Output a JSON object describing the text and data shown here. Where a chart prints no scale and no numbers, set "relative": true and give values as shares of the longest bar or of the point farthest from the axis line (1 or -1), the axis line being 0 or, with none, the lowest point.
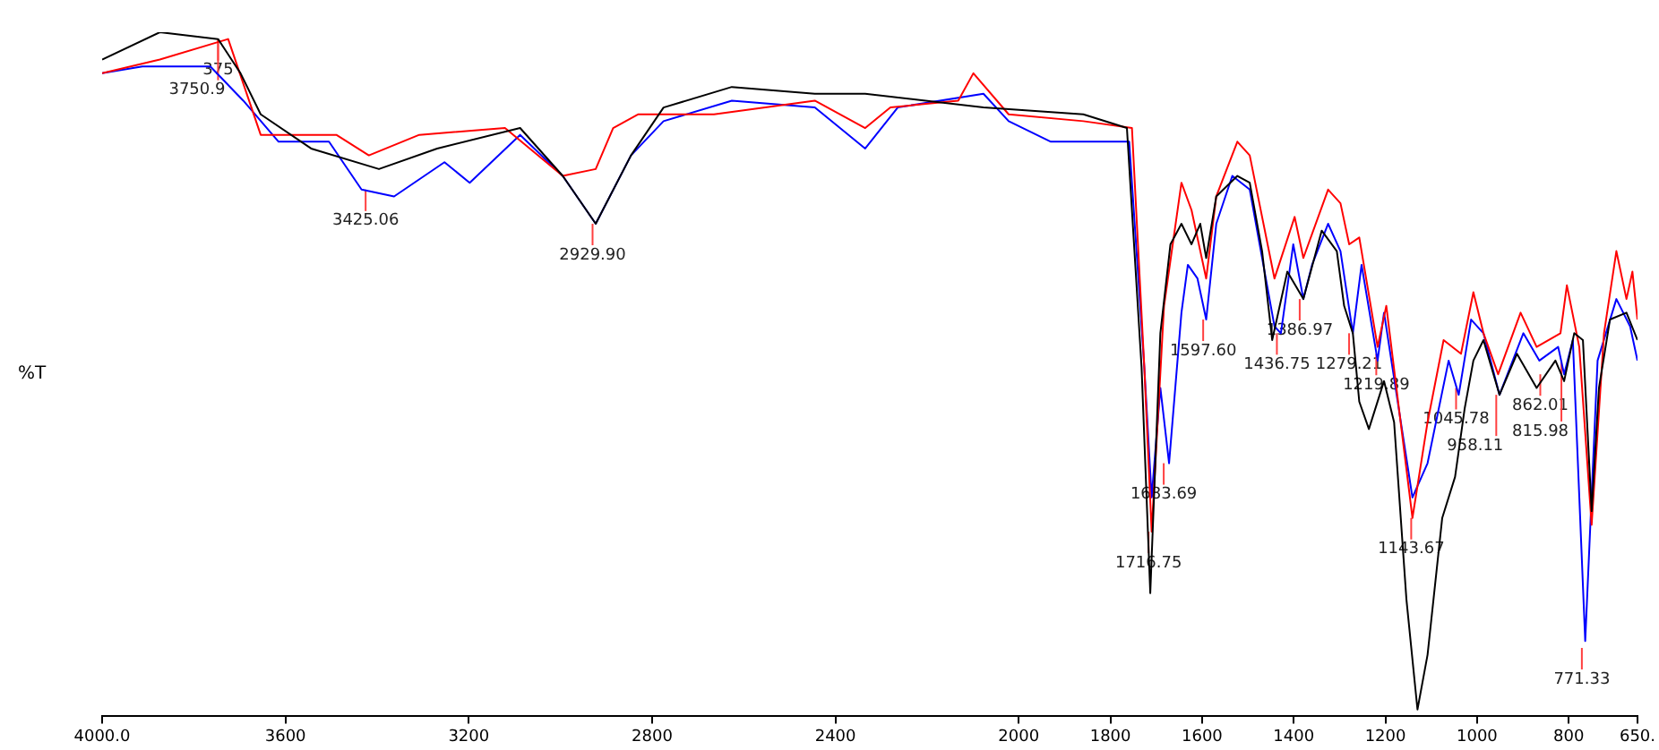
{
  "chart_data": {
    "type": "line",
    "ylabel": "%T",
    "relative": true,
    "legend": false,
    "marker": "none",
    "line_style": "solid",
    "xlim": [
      4000,
      650
    ],
    "xticks": [
      {
        "value": 4000,
        "label": "4000.0"
      },
      3600,
      3200,
      2800,
      2400,
      2000,
      1800,
      1600,
      1400,
      1200,
      1000,
      800,
      {
        "value": 650,
        "label": "650."
      }
    ],
    "series": [
      {
        "color": "#000000",
        "x": [
          4000,
          3874,
          3747,
          3698,
          3654,
          3544,
          3396,
          3269,
          3088,
          2995,
          2923,
          2846,
          2775,
          2626,
          2445,
          2335,
          2077,
          1859,
          1764,
          1732,
          1713,
          1691,
          1669,
          1645,
          1623,
          1604,
          1591,
          1569,
          1523,
          1496,
          1469,
          1447,
          1414,
          1379,
          1339,
          1306,
          1290,
          1271,
          1257,
          1236,
          1203,
          1181,
          1154,
          1130,
          1108,
          1076,
          1048,
          1027,
          1008,
          986,
          951,
          913,
          870,
          829,
          810,
          788,
          769,
          750,
          734,
          710,
          674,
          650
        ],
        "values": [
          0.96,
          1.0,
          0.99,
          0.94,
          0.88,
          0.83,
          0.8,
          0.83,
          0.86,
          0.79,
          0.72,
          0.82,
          0.89,
          0.92,
          0.91,
          0.91,
          0.89,
          0.88,
          0.86,
          0.51,
          0.18,
          0.56,
          0.69,
          0.72,
          0.69,
          0.72,
          0.67,
          0.76,
          0.79,
          0.78,
          0.68,
          0.55,
          0.65,
          0.61,
          0.71,
          0.68,
          0.6,
          0.56,
          0.46,
          0.42,
          0.49,
          0.43,
          0.17,
          0.01,
          0.09,
          0.29,
          0.35,
          0.45,
          0.52,
          0.55,
          0.47,
          0.53,
          0.48,
          0.52,
          0.49,
          0.56,
          0.55,
          0.3,
          0.48,
          0.58,
          0.59,
          0.55
        ]
      },
      {
        "color": "#ff0000",
        "x": [
          4000,
          3874,
          3725,
          3654,
          3489,
          3418,
          3308,
          3121,
          2995,
          2923,
          2885,
          2830,
          2775,
          2665,
          2445,
          2335,
          2280,
          2132,
          2099,
          2022,
          1859,
          1753,
          1726,
          1710,
          1683,
          1645,
          1623,
          1591,
          1569,
          1523,
          1496,
          1442,
          1398,
          1379,
          1325,
          1298,
          1279,
          1257,
          1217,
          1198,
          1141,
          1108,
          1073,
          1035,
          1008,
          986,
          954,
          905,
          870,
          818,
          804,
          777,
          750,
          723,
          696,
          674,
          661,
          650
        ],
        "values": [
          0.94,
          0.96,
          0.99,
          0.85,
          0.85,
          0.82,
          0.85,
          0.86,
          0.79,
          0.8,
          0.86,
          0.88,
          0.88,
          0.88,
          0.9,
          0.86,
          0.89,
          0.9,
          0.94,
          0.88,
          0.87,
          0.86,
          0.51,
          0.27,
          0.6,
          0.78,
          0.74,
          0.64,
          0.76,
          0.84,
          0.82,
          0.64,
          0.73,
          0.67,
          0.77,
          0.75,
          0.69,
          0.7,
          0.54,
          0.6,
          0.29,
          0.43,
          0.55,
          0.53,
          0.62,
          0.56,
          0.5,
          0.59,
          0.54,
          0.56,
          0.63,
          0.54,
          0.28,
          0.56,
          0.68,
          0.61,
          0.65,
          0.58
        ]
      },
      {
        "color": "#0000ff",
        "x": [
          4000,
          3912,
          3764,
          3692,
          3615,
          3505,
          3434,
          3363,
          3253,
          3198,
          3088,
          2995,
          2923,
          2846,
          2775,
          2626,
          2445,
          2335,
          2264,
          2077,
          2022,
          1930,
          1840,
          1759,
          1726,
          1710,
          1691,
          1672,
          1645,
          1631,
          1610,
          1591,
          1569,
          1534,
          1496,
          1442,
          1428,
          1401,
          1379,
          1360,
          1325,
          1298,
          1271,
          1252,
          1217,
          1203,
          1141,
          1108,
          1062,
          1040,
          1013,
          986,
          951,
          899,
          864,
          823,
          810,
          791,
          764,
          737,
          696,
          666,
          650
        ],
        "values": [
          0.94,
          0.95,
          0.95,
          0.9,
          0.84,
          0.84,
          0.77,
          0.76,
          0.81,
          0.78,
          0.85,
          0.79,
          0.72,
          0.82,
          0.87,
          0.9,
          0.89,
          0.83,
          0.89,
          0.91,
          0.87,
          0.84,
          0.84,
          0.84,
          0.51,
          0.32,
          0.48,
          0.37,
          0.59,
          0.66,
          0.64,
          0.58,
          0.72,
          0.79,
          0.77,
          0.57,
          0.56,
          0.69,
          0.61,
          0.66,
          0.72,
          0.68,
          0.56,
          0.66,
          0.52,
          0.59,
          0.32,
          0.37,
          0.52,
          0.47,
          0.58,
          0.56,
          0.47,
          0.56,
          0.52,
          0.54,
          0.5,
          0.55,
          0.11,
          0.52,
          0.61,
          0.57,
          0.52
        ]
      }
    ],
    "annotations": [
      {
        "text": "375",
        "x": 3747,
        "y": 0.99
      },
      {
        "text": "3750.9",
        "x": 3747,
        "y": 0.99
      },
      {
        "text": "3425.06",
        "x": 3425.06,
        "y": 0.77
      },
      {
        "text": "2929.90",
        "x": 2929.9,
        "y": 0.72
      },
      {
        "text": "1716.75",
        "x": 1716.75,
        "y": 0.27
      },
      {
        "text": "1683.69",
        "x": 1683.69,
        "y": 0.37
      },
      {
        "text": "1597.60",
        "x": 1597.6,
        "y": 0.58
      },
      {
        "text": "1436.75",
        "x": 1436.75,
        "y": 0.56
      },
      {
        "text": "1386.97",
        "x": 1386.97,
        "y": 0.61
      },
      {
        "text": "1279.21",
        "x": 1279.21,
        "y": 0.56
      },
      {
        "text": "1219.89",
        "x": 1219.89,
        "y": 0.53
      },
      {
        "text": "1143.67",
        "x": 1143.67,
        "y": 0.29
      },
      {
        "text": "1045.78",
        "x": 1045.78,
        "y": 0.48
      },
      {
        "text": "958.11",
        "x": 958.11,
        "y": 0.47
      },
      {
        "text": "862.01",
        "x": 862.01,
        "y": 0.5
      },
      {
        "text": "815.98",
        "x": 815.98,
        "y": 0.52
      },
      {
        "text": "771.33",
        "x": 771.33,
        "y": 0.1
      }
    ]
  }
}
